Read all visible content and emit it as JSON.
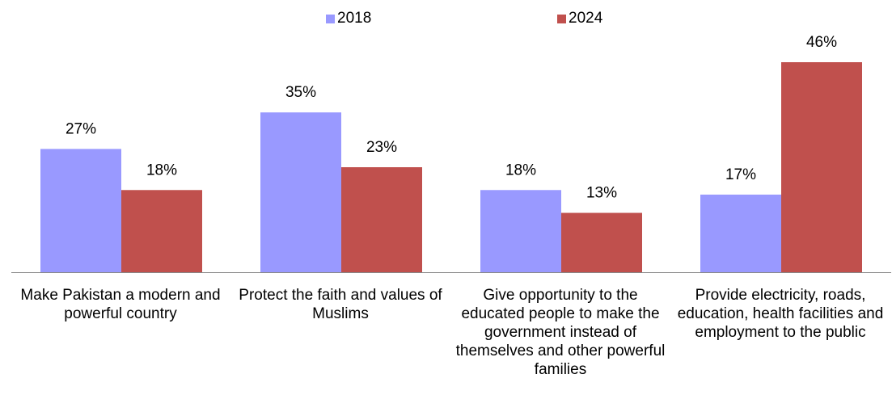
{
  "chart_data": {
    "type": "bar",
    "categories": [
      "Make Pakistan a modern and powerful country",
      "Protect the faith and values of Muslims",
      "Give opportunity to the educated people to make the government instead of themselves and other powerful families",
      "Provide electricity, roads, education, health facilities and employment to the public"
    ],
    "series": [
      {
        "name": "2018",
        "values": [
          27,
          35,
          18,
          17
        ],
        "labels": [
          "27%",
          "35%",
          "18%",
          "17%"
        ],
        "color": "#9999ff"
      },
      {
        "name": "2024",
        "values": [
          18,
          23,
          13,
          46
        ],
        "labels": [
          "18%",
          "23%",
          "13%",
          "46%"
        ],
        "color": "#c0504d"
      }
    ],
    "ylim": [
      0,
      46
    ],
    "legend": "top-center",
    "grid": false,
    "axis_color": "#888888"
  }
}
